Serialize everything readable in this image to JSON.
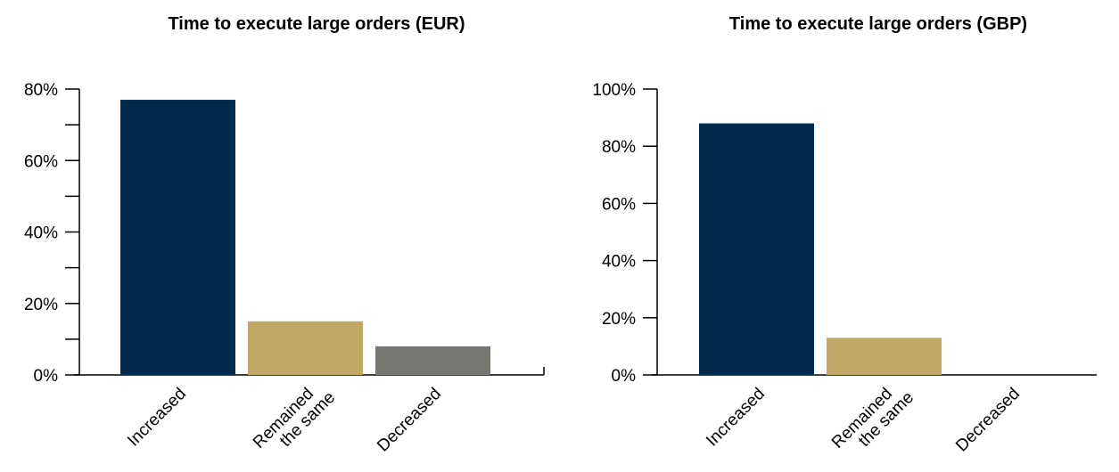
{
  "chart_data": [
    {
      "type": "bar",
      "title": "Time to execute large orders (EUR)",
      "categories": [
        "Increased",
        "Remained the same",
        "Decreased"
      ],
      "category_lines": [
        [
          "Increased"
        ],
        [
          "Remained",
          "the same"
        ],
        [
          "Decreased"
        ]
      ],
      "values": [
        77,
        15,
        8
      ],
      "value_unit": "%",
      "bar_colors": [
        "#002b4f",
        "#c0a865",
        "#787671"
      ],
      "ylim": [
        0,
        80
      ],
      "yticks": [
        0,
        20,
        40,
        60,
        80
      ],
      "ytick_labels": [
        "0%",
        "20%",
        "40%",
        "60%",
        "80%"
      ],
      "minor_ticks": true,
      "grid": false,
      "xlabel": "",
      "ylabel": ""
    },
    {
      "type": "bar",
      "title": "Time to execute large orders (GBP)",
      "categories": [
        "Increased",
        "Remained the same",
        "Decreased"
      ],
      "category_lines": [
        [
          "Increased"
        ],
        [
          "Remained",
          "the same"
        ],
        [
          "Decreased"
        ]
      ],
      "values": [
        88,
        13,
        0
      ],
      "value_unit": "%",
      "bar_colors": [
        "#002b4f",
        "#c0a865",
        "#787671"
      ],
      "ylim": [
        0,
        100
      ],
      "yticks": [
        0,
        20,
        40,
        60,
        80,
        100
      ],
      "ytick_labels": [
        "0%",
        "20%",
        "40%",
        "60%",
        "80%",
        "100%"
      ],
      "minor_ticks": false,
      "grid": false,
      "xlabel": "",
      "ylabel": ""
    }
  ]
}
